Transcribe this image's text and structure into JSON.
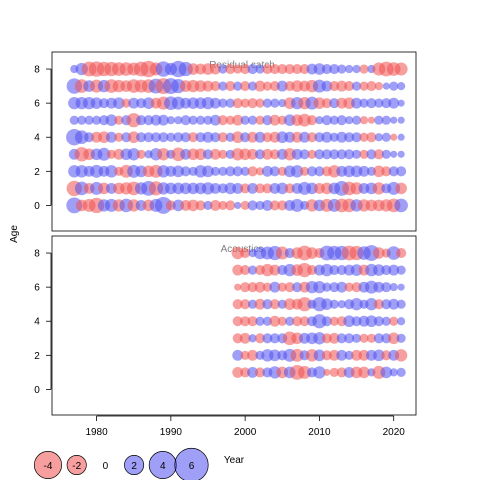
{
  "chart_data": {
    "type": "scatter",
    "subtype": "bubble-residuals",
    "ylabel": "Age",
    "xlabel": "Year",
    "xlim": [
      1974,
      2023
    ],
    "ylim": [
      -1.5,
      9
    ],
    "x_ticks": [
      1980,
      1990,
      2000,
      2010,
      2020
    ],
    "y_ticks": [
      0,
      2,
      4,
      6,
      8
    ],
    "colors": {
      "positive": "#5050f0",
      "negative": "#f05050",
      "panel_border": "#000000",
      "title": "#7f7f7f"
    },
    "legend": {
      "position": "bottom-left",
      "entries": [
        {
          "label": "-4",
          "value": -4
        },
        {
          "label": "-2",
          "value": -2
        },
        {
          "label": "0",
          "value": 0
        },
        {
          "label": "2",
          "value": 2
        },
        {
          "label": "4",
          "value": 4
        },
        {
          "label": "6",
          "value": 6
        }
      ]
    },
    "panels": [
      {
        "title": "Residual catch",
        "years": [
          1977,
          1978,
          1979,
          1980,
          1981,
          1982,
          1983,
          1984,
          1985,
          1986,
          1987,
          1988,
          1989,
          1990,
          1991,
          1992,
          1993,
          1994,
          1995,
          1996,
          1997,
          1998,
          1999,
          2000,
          2001,
          2002,
          2003,
          2004,
          2005,
          2006,
          2007,
          2008,
          2009,
          2010,
          2011,
          2012,
          2013,
          2014,
          2015,
          2016,
          2017,
          2018,
          2019,
          2020,
          2021
        ],
        "ages": [
          0,
          1,
          2,
          3,
          4,
          5,
          6,
          7,
          8
        ],
        "residuals": [
          [
            1.5,
            -0.8,
            -1.0,
            -1.4,
            0.9,
            1.0,
            -0.9,
            1.1,
            -0.9,
            0.7,
            -0.8,
            1.0,
            1.7,
            -0.6,
            0.8,
            -0.7,
            -0.8,
            -0.6,
            0.5,
            -0.7,
            -0.5,
            -0.6,
            0.3,
            -0.5,
            0.6,
            0.5,
            0.7,
            -0.6,
            -0.6,
            0.7,
            1.0,
            0.5,
            -0.9,
            0.8,
            -1.0,
            1.0,
            -1.1,
            -1.1,
            0.9,
            -0.9,
            -0.8,
            -0.8,
            -0.9,
            -1.1,
            1.1
          ],
          [
            -1.4,
            1.1,
            -0.7,
            1.0,
            -0.8,
            0.7,
            -0.8,
            -0.9,
            -1.1,
            0.9,
            1.3,
            -1.2,
            0.9,
            0.8,
            0.8,
            0.8,
            0.8,
            0.8,
            0.9,
            0.7,
            0.6,
            0.8,
            0.7,
            -0.6,
            0.7,
            -0.6,
            -0.6,
            0.7,
            0.8,
            -0.6,
            0.7,
            1.0,
            0.8,
            -0.7,
            -0.8,
            0.8,
            1.3,
            -1.1,
            -0.9,
            0.7,
            0.8,
            -0.9,
            0.6,
            1.0,
            -0.8
          ],
          [
            0.9,
            0.9,
            0.7,
            1.0,
            0.7,
            0.9,
            -0.5,
            -1.0,
            1.0,
            0.8,
            -0.8,
            -1.0,
            0.9,
            0.7,
            0.8,
            0.6,
            0.5,
            0.9,
            0.8,
            0.5,
            0.5,
            0.6,
            0.6,
            0.5,
            -0.6,
            -0.4,
            0.7,
            0.6,
            -0.5,
            0.8,
            0.9,
            -0.5,
            0.6,
            0.6,
            -0.6,
            -0.9,
            0.7,
            0.8,
            0.8,
            0.7,
            0.5,
            -0.8,
            -0.6,
            0.6,
            0.6
          ],
          [
            0.7,
            -1.2,
            -0.8,
            0.8,
            1.0,
            -0.5,
            -0.7,
            0.8,
            0.9,
            -0.5,
            0.4,
            0.9,
            -0.9,
            0.5,
            -1.1,
            0.7,
            -0.8,
            -0.8,
            0.6,
            -0.7,
            -0.5,
            0.5,
            -0.9,
            -0.8,
            -0.7,
            0.6,
            -0.7,
            -0.6,
            0.7,
            -0.9,
            0.7,
            0.6,
            -0.5,
            0.6,
            0.6,
            0.6,
            0.6,
            0.6,
            0.5,
            -0.5,
            0.6,
            -0.6,
            0.5,
            0.3,
            0.3
          ],
          [
            1.6,
            1.1,
            0.6,
            -0.7,
            -0.8,
            0.7,
            -0.5,
            0.6,
            -0.8,
            0.6,
            0.6,
            0.6,
            0.6,
            0.5,
            0.6,
            0.6,
            -0.6,
            0.6,
            0.7,
            0.6,
            -0.6,
            0.5,
            -0.8,
            0.6,
            -0.7,
            0.7,
            -0.6,
            -0.7,
            0.8,
            0.7,
            -0.7,
            0.7,
            -0.6,
            0.6,
            0.7,
            0.5,
            0.7,
            0.6,
            0.6,
            -0.5,
            -0.6,
            0.4,
            0.5,
            -0.3,
            0.3
          ],
          [
            0.5,
            0.5,
            0.5,
            0.5,
            0.6,
            0.8,
            -0.5,
            0.6,
            -1.2,
            0.6,
            0.6,
            0.7,
            0.7,
            0.4,
            0.4,
            0.6,
            0.5,
            0.5,
            0.5,
            0.7,
            -0.6,
            -0.5,
            -0.7,
            0.5,
            0.5,
            -0.5,
            0.6,
            -0.7,
            -0.5,
            0.8,
            -0.8,
            -1.0,
            -0.6,
            0.4,
            0.6,
            0.5,
            0.6,
            0.4,
            0.5,
            -0.4,
            -0.3,
            0.5,
            0.5,
            0.3,
            0.3
          ],
          [
            0.9,
            0.9,
            0.9,
            0.8,
            0.6,
            0.7,
            0.8,
            -0.5,
            0.7,
            0.6,
            0.8,
            -0.7,
            -1.0,
            1.1,
            1.0,
            0.7,
            0.8,
            0.8,
            0.9,
            0.7,
            0.5,
            0.5,
            -0.6,
            -0.5,
            -0.6,
            -0.5,
            0.5,
            0.5,
            0.4,
            -0.8,
            0.9,
            -0.9,
            1.0,
            -0.8,
            -0.6,
            0.6,
            -0.7,
            -0.8,
            0.7,
            0.5,
            0.6,
            0.5,
            0.6,
            0.7,
            0.3
          ],
          [
            1.4,
            -1.1,
            0.8,
            -1.0,
            0.9,
            -1.1,
            -0.9,
            -0.8,
            -1.1,
            -1.0,
            -1.1,
            1.3,
            -1.5,
            1.5,
            1.2,
            -0.8,
            -0.9,
            -0.8,
            -0.7,
            -0.6,
            0.5,
            -0.6,
            0.5,
            -0.6,
            0.5,
            -0.7,
            -0.5,
            -0.6,
            0.7,
            -0.6,
            -0.8,
            -0.7,
            -0.9,
            1.0,
            0.7,
            -0.6,
            -0.7,
            -0.6,
            0.5,
            -0.5,
            -0.6,
            -0.4,
            0.3,
            0.5,
            0.4
          ],
          [
            0.4,
            0.9,
            -1.3,
            -1.4,
            -1.2,
            -1.2,
            -1.1,
            -1.1,
            -1.0,
            -1.3,
            -1.6,
            -1.0,
            1.4,
            0.9,
            1.6,
            1.2,
            -0.8,
            -0.7,
            -0.8,
            -0.7,
            0.5,
            -0.6,
            -0.5,
            -0.6,
            0.6,
            0.5,
            -0.6,
            -0.6,
            -0.6,
            -0.6,
            -0.6,
            -0.6,
            0.7,
            0.8,
            0.6,
            0.6,
            0.5,
            0.4,
            0.4,
            -0.5,
            0.4,
            -1.0,
            -1.3,
            -1.1,
            -1.0
          ]
        ]
      },
      {
        "title": "Acoustics",
        "years": [
          1999,
          2000,
          2001,
          2002,
          2003,
          2004,
          2005,
          2006,
          2007,
          2008,
          2009,
          2010,
          2011,
          2012,
          2013,
          2014,
          2015,
          2016,
          2017,
          2018,
          2019,
          2020,
          2021
        ],
        "ages": [
          1,
          2,
          3,
          4,
          5,
          6,
          7,
          8
        ],
        "residuals": [
          [
            -0.7,
            -0.6,
            0.7,
            -0.6,
            0.6,
            0.9,
            -0.8,
            0.8,
            -1.3,
            -1.0,
            0.6,
            0.9,
            -0.3,
            -0.5,
            -0.6,
            0.7,
            -0.8,
            -0.8,
            0.4,
            -1.0,
            0.8,
            0.4,
            0.5
          ],
          [
            0.7,
            -0.5,
            -0.7,
            0.5,
            0.9,
            0.8,
            0.6,
            1.0,
            -1.0,
            0.6,
            -0.9,
            0.8,
            -0.6,
            -0.7,
            0.7,
            0.5,
            -0.7,
            -0.7,
            0.7,
            0.8,
            -0.6,
            0.7,
            -0.9
          ],
          [
            -0.6,
            -0.7,
            0.4,
            -0.6,
            0.6,
            0.6,
            0.6,
            -1.1,
            -0.8,
            0.7,
            0.8,
            0.9,
            -0.6,
            -0.7,
            0.6,
            0.6,
            0.5,
            -0.5,
            -0.5,
            0.6,
            0.6,
            -0.8,
            0.5
          ],
          [
            -0.6,
            -0.6,
            -0.6,
            0.5,
            0.5,
            -0.7,
            -0.5,
            0.5,
            -0.6,
            -0.6,
            0.6,
            1.2,
            0.6,
            -0.5,
            -0.6,
            0.8,
            0.6,
            0.7,
            0.8,
            0.6,
            0.5,
            -0.5,
            0.4
          ],
          [
            -0.6,
            -0.6,
            0.5,
            -0.7,
            0.6,
            -0.6,
            0.5,
            -0.8,
            -0.7,
            -1.2,
            0.5,
            1.2,
            0.8,
            0.5,
            0.4,
            0.6,
            0.9,
            0.5,
            0.9,
            -0.6,
            0.6,
            0.7,
            0.5
          ],
          [
            -0.3,
            -0.6,
            -0.6,
            -0.7,
            -0.5,
            0.7,
            -0.5,
            -0.6,
            0.6,
            -0.7,
            0.9,
            0.9,
            0.5,
            0.6,
            0.7,
            -0.5,
            -0.6,
            0.7,
            1.0,
            0.7,
            0.6,
            0.4,
            0.3
          ],
          [
            -0.7,
            -0.6,
            0.5,
            -0.6,
            -0.9,
            -0.7,
            0.6,
            0.9,
            -0.8,
            -1.2,
            -0.6,
            0.7,
            0.9,
            0.6,
            0.6,
            0.7,
            0.8,
            -0.7,
            0.9,
            0.8,
            0.6,
            0.7,
            0.5
          ],
          [
            -0.9,
            -0.6,
            0.4,
            0.9,
            1.0,
            1.2,
            -1.0,
            0.6,
            -0.8,
            -1.3,
            -0.8,
            -0.6,
            1.3,
            1.2,
            1.2,
            -1.3,
            -1.2,
            1.1,
            1.5,
            -0.8,
            -0.5,
            1.1,
            -0.6
          ]
        ]
      }
    ]
  }
}
